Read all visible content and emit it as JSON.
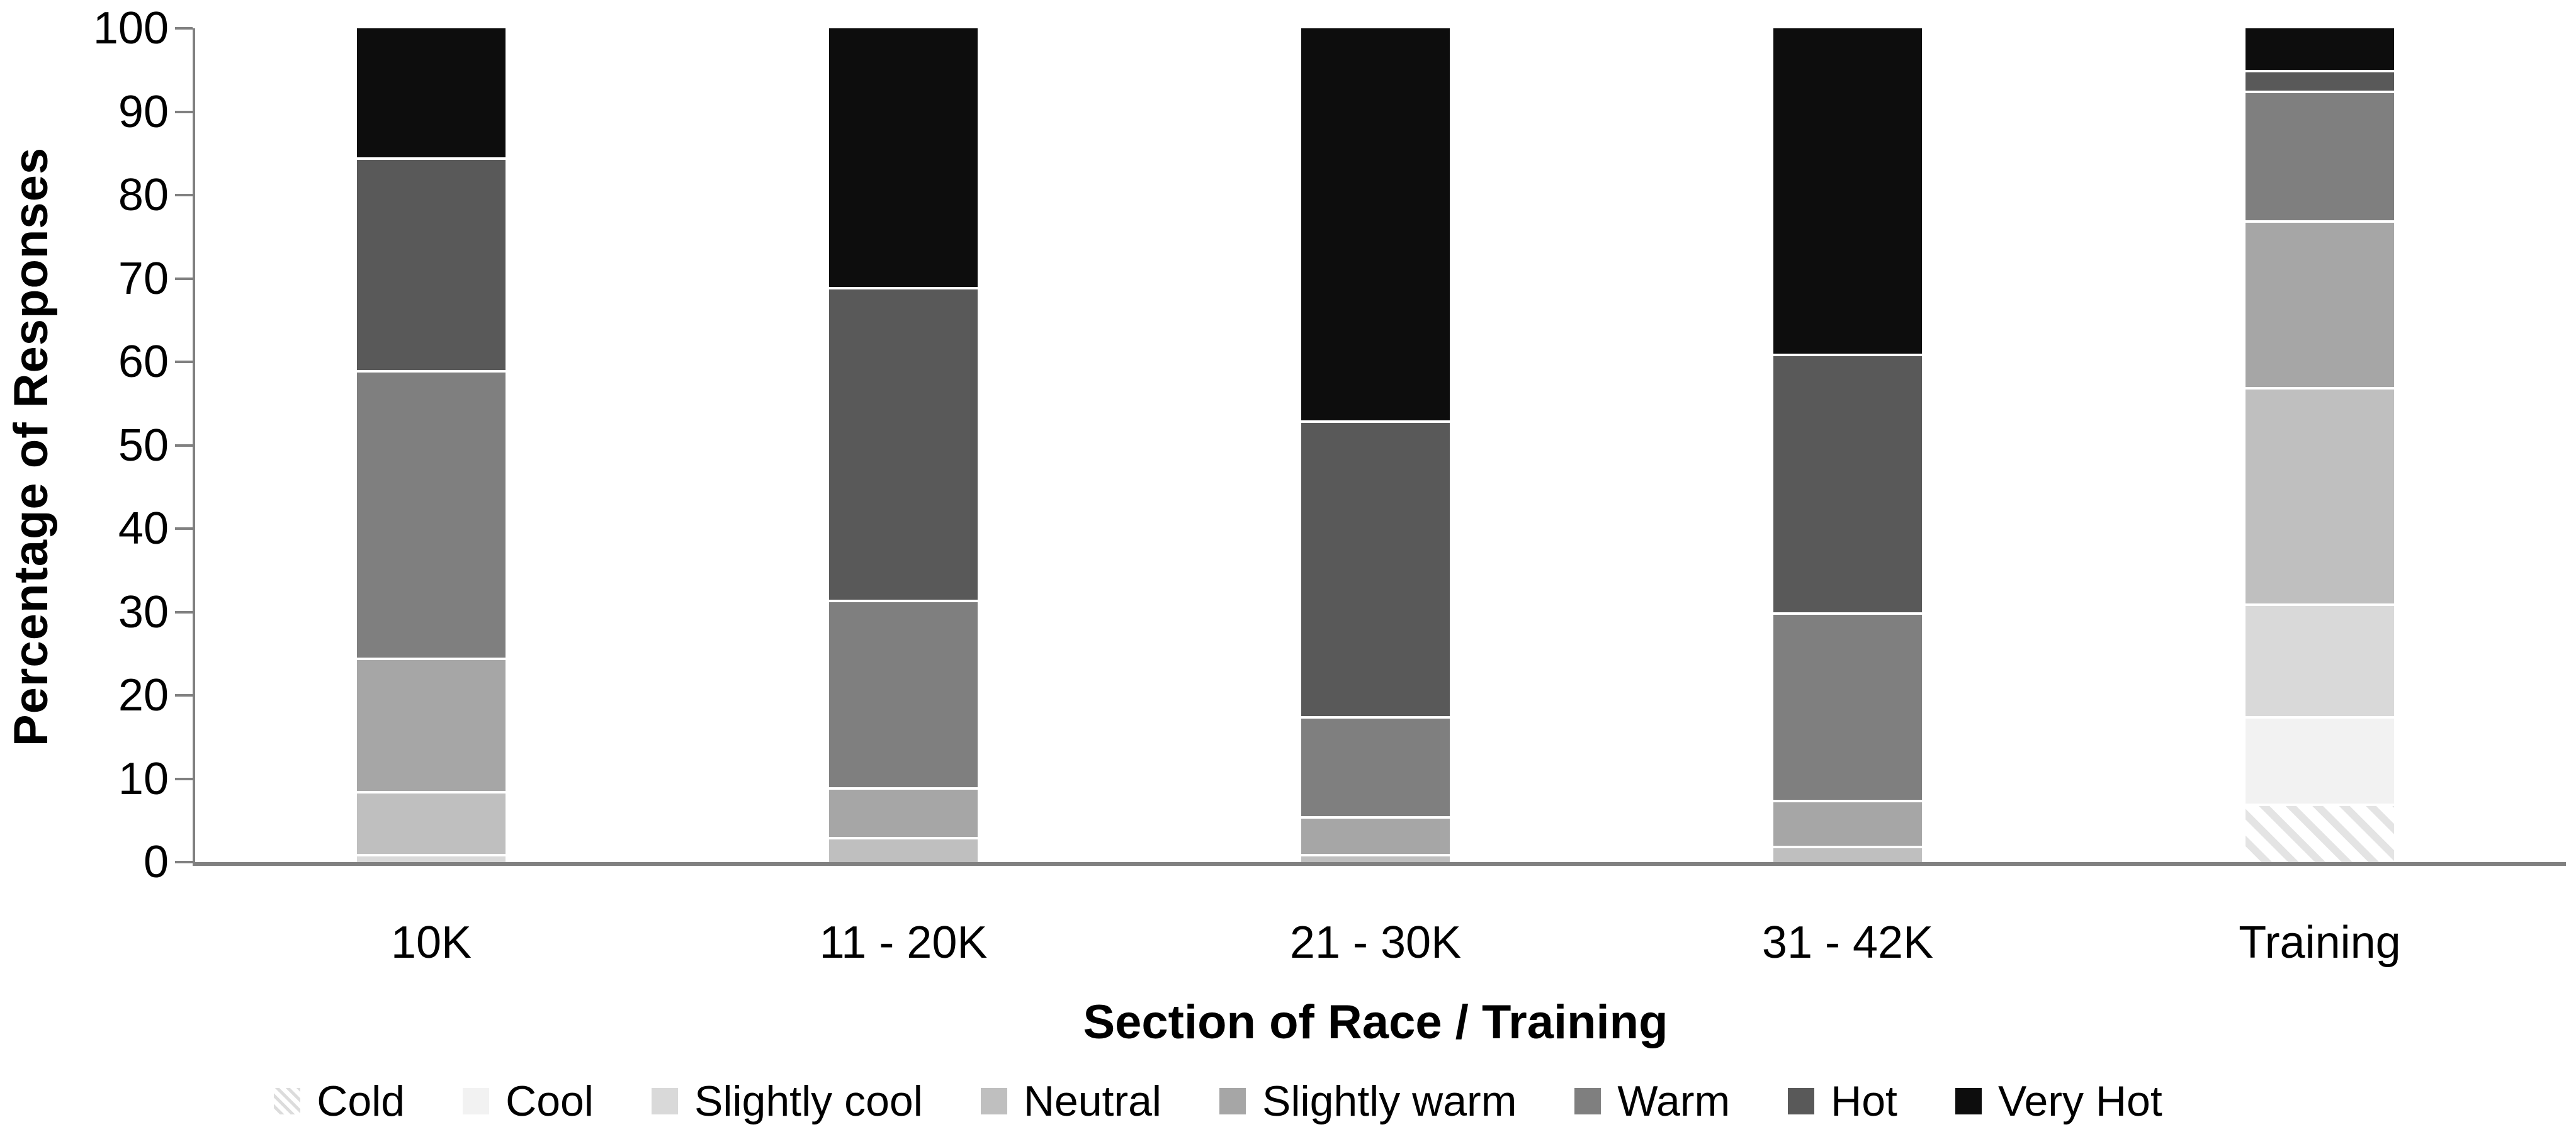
{
  "chart": {
    "title": "",
    "axis_color": "#808080",
    "y_axis": {
      "title": "Percentage of Responses"
    },
    "x_axis": {
      "title": "Section of Race / Training"
    }
  },
  "chart_data": {
    "type": "bar",
    "stacked": true,
    "stacked_total": 100,
    "grid": false,
    "legend_position": "bottom",
    "xlabel": "Section of Race / Training",
    "ylabel": "Percentage of Responses",
    "ylim": [
      0,
      100
    ],
    "y_ticks": [
      0,
      10,
      20,
      30,
      40,
      50,
      60,
      70,
      80,
      90,
      100
    ],
    "categories": [
      "10K",
      "11 - 20K",
      "21 - 30K",
      "31 - 42K",
      "Training"
    ],
    "series": [
      {
        "name": "Cold",
        "color": "#ffffff",
        "pattern": "diagonal-hatch",
        "values": [
          0,
          0,
          0,
          0,
          7
        ]
      },
      {
        "name": "Cool",
        "color": "#f2f2f2",
        "pattern": null,
        "values": [
          0,
          0,
          0,
          0,
          10.5
        ]
      },
      {
        "name": "Slightly cool",
        "color": "#d9d9d9",
        "pattern": null,
        "values": [
          1,
          0,
          0,
          0,
          13.5
        ]
      },
      {
        "name": "Neutral",
        "color": "#bfbfbf",
        "pattern": null,
        "values": [
          7.5,
          3,
          1,
          2,
          26
        ]
      },
      {
        "name": "Slightly warm",
        "color": "#a6a6a6",
        "pattern": null,
        "values": [
          16,
          6,
          4.5,
          5.5,
          20
        ]
      },
      {
        "name": "Warm",
        "color": "#7f7f7f",
        "pattern": null,
        "values": [
          34.5,
          22.5,
          12,
          22.5,
          15.5
        ]
      },
      {
        "name": "Hot",
        "color": "#595959",
        "pattern": null,
        "values": [
          25.5,
          37.5,
          35.5,
          31,
          2.5
        ]
      },
      {
        "name": "Very Hot",
        "color": "#0d0d0d",
        "pattern": null,
        "values": [
          15.5,
          31,
          47,
          39,
          5
        ]
      }
    ]
  }
}
